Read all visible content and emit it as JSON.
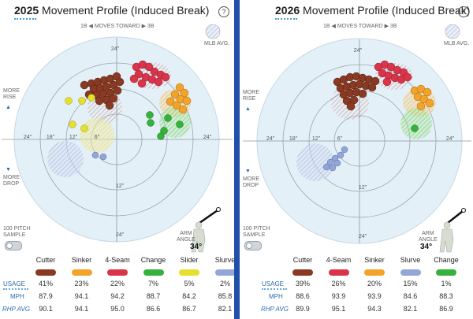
{
  "left": {
    "title_year": "2025",
    "title_rest": " Movement Profile (Induced Break)",
    "help": "?",
    "moves_toward": "1B ◀ MOVES TOWARD ▶ 3B",
    "mlb_avg": "MLB AVG.",
    "more_rise": "MORE\nRISE",
    "more_drop": "MORE\nDROP",
    "sample": "100 PITCH\nSAMPLE",
    "arm_angle_label": "ARM\nANGLE",
    "arm_angle_value": "34°",
    "row_labels": {
      "usage": "USAGE",
      "mph": "MPH",
      "rhp": "RHP AVG"
    },
    "rings": {
      "r24": "24\"",
      "r18": "18\"",
      "r12": "12\"",
      "r6": "6\""
    },
    "pitches": [
      {
        "name": "Cutter",
        "usage": "41%",
        "mph": "87.9",
        "rhp": "90.1",
        "color": "#8a3a22"
      },
      {
        "name": "Sinker",
        "usage": "23%",
        "mph": "94.1",
        "rhp": "94.1",
        "color": "#f2a32a"
      },
      {
        "name": "4-Seam",
        "usage": "22%",
        "mph": "94.2",
        "rhp": "95.0",
        "color": "#d9344a"
      },
      {
        "name": "Change",
        "usage": "7%",
        "mph": "88.7",
        "rhp": "86.6",
        "color": "#34b23c"
      },
      {
        "name": "Slider",
        "usage": "5%",
        "mph": "84.2",
        "rhp": "86.7",
        "color": "#e6e02c"
      },
      {
        "name": "Slurve",
        "usage": "2%",
        "mph": "85.8",
        "rhp": "82.1",
        "color": "#93a6d9"
      }
    ]
  },
  "right": {
    "title_year": "2026",
    "title_rest": " Movement Profile (Induced Break)",
    "help": "?",
    "moves_toward": "1B ◀ MOVES TOWARD ▶ 3B",
    "mlb_avg": "MLB AVG.",
    "more_rise": "MORE\nRISE",
    "more_drop": "MORE\nDROP",
    "sample": "100 PITCH\nSAMPLE",
    "arm_angle_label": "ARM\nANGLE",
    "arm_angle_value": "34°",
    "row_labels": {
      "usage": "USAGE",
      "mph": "MPH",
      "rhp": "RHP AVG"
    },
    "rings": {
      "r24": "24\"",
      "r18": "18\"",
      "r12": "12\"",
      "r6": "6\""
    },
    "pitches": [
      {
        "name": "Cutter",
        "usage": "39%",
        "mph": "88.6",
        "rhp": "89.9",
        "color": "#8a3a22"
      },
      {
        "name": "4-Seam",
        "usage": "26%",
        "mph": "93.9",
        "rhp": "95.1",
        "color": "#d9344a"
      },
      {
        "name": "Sinker",
        "usage": "20%",
        "mph": "93.9",
        "rhp": "94.3",
        "color": "#f2a32a"
      },
      {
        "name": "Slurve",
        "usage": "15%",
        "mph": "84.6",
        "rhp": "82.1",
        "color": "#93a6d9"
      },
      {
        "name": "Change",
        "usage": "1%",
        "mph": "88.3",
        "rhp": "86.9",
        "color": "#34b23c"
      }
    ]
  }
}
